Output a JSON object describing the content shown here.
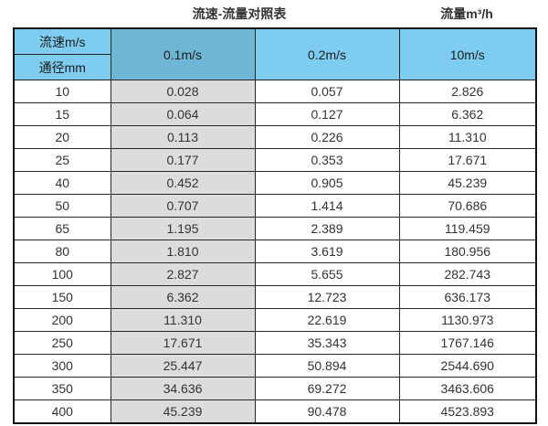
{
  "page": {
    "title": "流速-流量对照表",
    "unit_label": "流量m³/h"
  },
  "table_header": {
    "corner_top": "流速m/s",
    "corner_bottom": "通径mm",
    "velocity_columns": [
      "0.1m/s",
      "0.2m/s",
      "10m/s"
    ]
  },
  "colors": {
    "header_light_blue": "#7ecdf0",
    "header_steel_blue": "#6fb6d6",
    "highlight_column_gray": "#dcdcdc",
    "border": "#262626",
    "text": "#333333"
  },
  "chart_data": {
    "type": "table",
    "title": "流速-流量对照表",
    "ylabel": "流量m³/h",
    "row_header_top": "流速m/s",
    "row_header_bottom": "通径mm",
    "columns": [
      "通径mm",
      "0.1m/s",
      "0.2m/s",
      "10m/s"
    ],
    "diameters_mm": [
      10,
      15,
      20,
      25,
      40,
      50,
      65,
      80,
      100,
      150,
      200,
      250,
      300,
      350,
      400
    ],
    "series": [
      {
        "name": "0.1m/s",
        "values": [
          0.028,
          0.064,
          0.113,
          0.177,
          0.452,
          0.707,
          1.195,
          1.81,
          2.827,
          6.362,
          11.31,
          17.671,
          25.447,
          34.636,
          45.239
        ]
      },
      {
        "name": "0.2m/s",
        "values": [
          0.057,
          0.127,
          0.226,
          0.353,
          0.905,
          1.414,
          2.389,
          3.619,
          5.655,
          12.723,
          22.619,
          35.343,
          50.894,
          69.272,
          90.478
        ]
      },
      {
        "name": "10m/s",
        "values": [
          2.826,
          6.362,
          11.31,
          17.671,
          45.239,
          70.686,
          119.459,
          180.956,
          282.743,
          636.173,
          1130.973,
          1767.146,
          2544.69,
          3463.606,
          4523.893
        ]
      }
    ],
    "rows": [
      [
        "10",
        "0.028",
        "0.057",
        "2.826"
      ],
      [
        "15",
        "0.064",
        "0.127",
        "6.362"
      ],
      [
        "20",
        "0.113",
        "0.226",
        "11.310"
      ],
      [
        "25",
        "0.177",
        "0.353",
        "17.671"
      ],
      [
        "40",
        "0.452",
        "0.905",
        "45.239"
      ],
      [
        "50",
        "0.707",
        "1.414",
        "70.686"
      ],
      [
        "65",
        "1.195",
        "2.389",
        "119.459"
      ],
      [
        "80",
        "1.810",
        "3.619",
        "180.956"
      ],
      [
        "100",
        "2.827",
        "5.655",
        "282.743"
      ],
      [
        "150",
        "6.362",
        "12.723",
        "636.173"
      ],
      [
        "200",
        "11.310",
        "22.619",
        "1130.973"
      ],
      [
        "250",
        "17.671",
        "35.343",
        "1767.146"
      ],
      [
        "300",
        "25.447",
        "50.894",
        "2544.690"
      ],
      [
        "350",
        "34.636",
        "69.272",
        "3463.606"
      ],
      [
        "400",
        "45.239",
        "90.478",
        "4523.893"
      ]
    ]
  }
}
